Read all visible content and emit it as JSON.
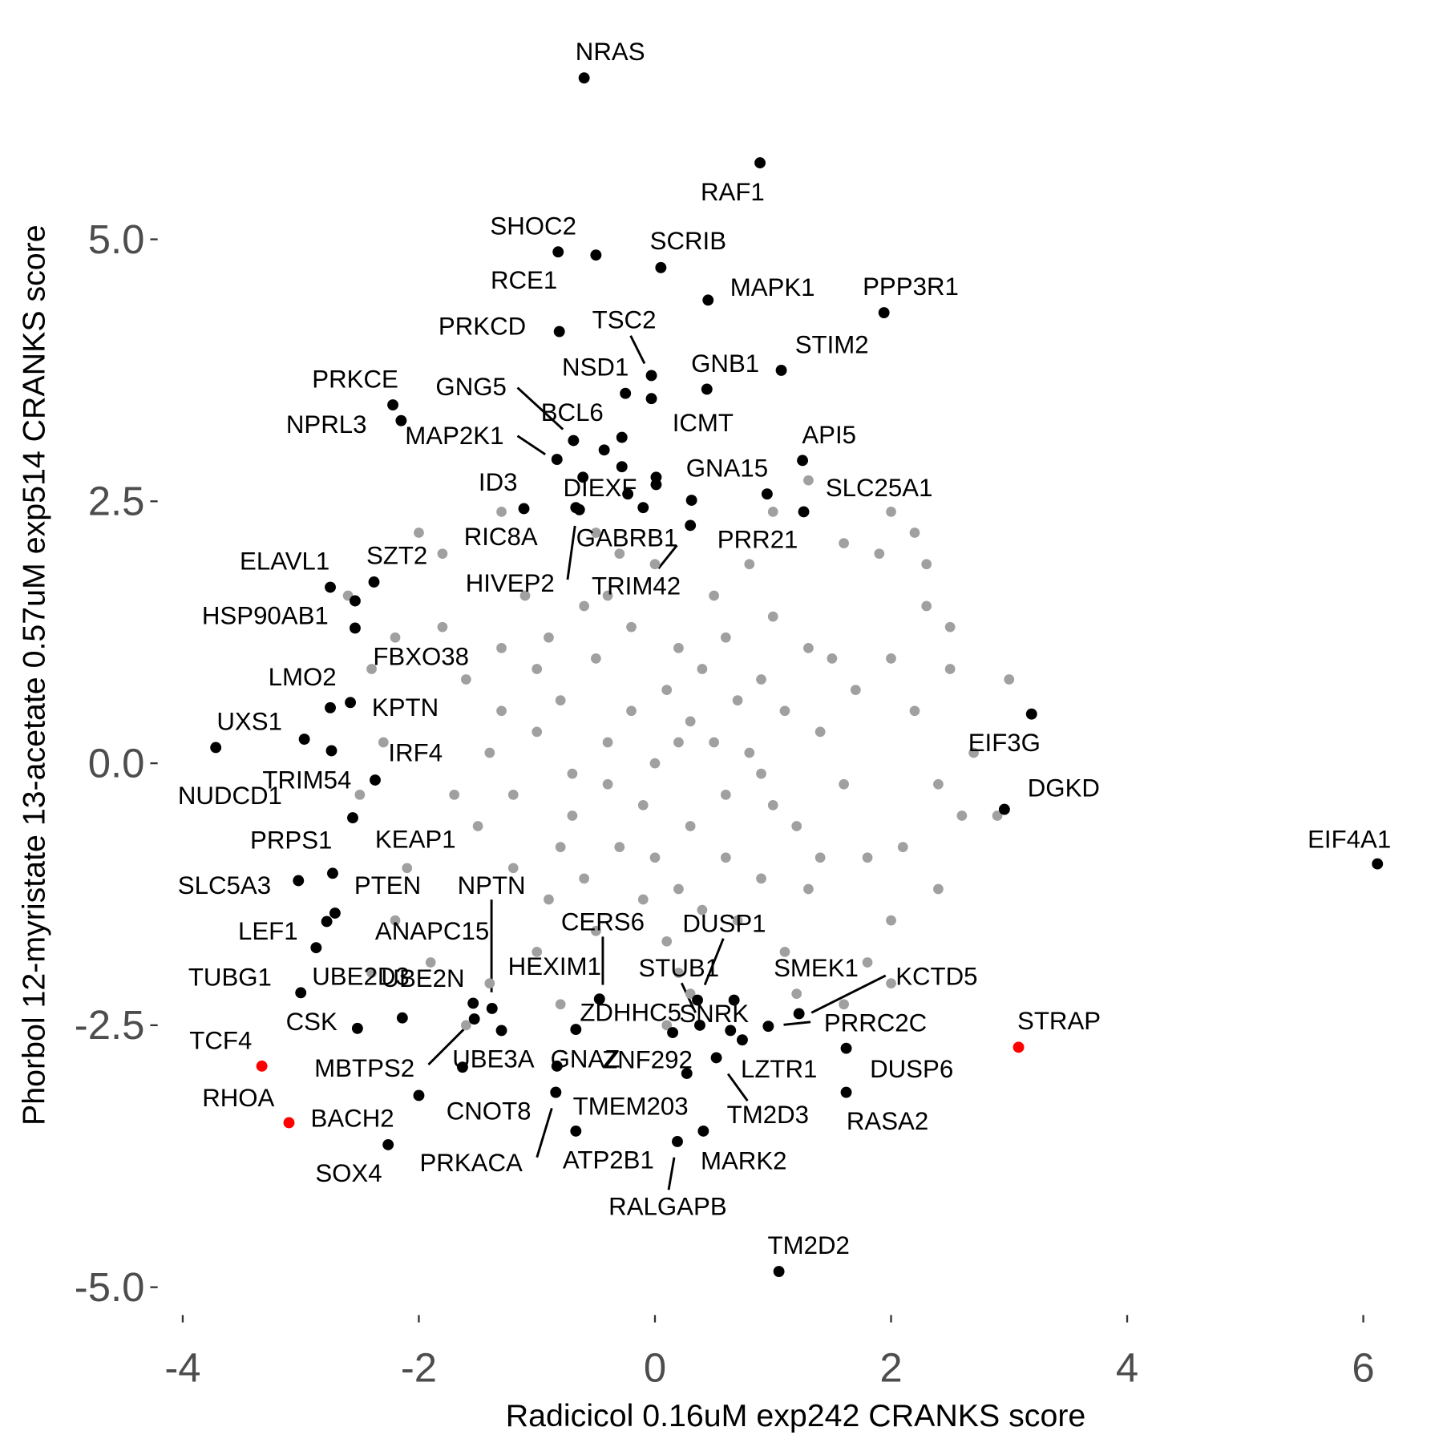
{
  "chart_data": {
    "type": "scatter",
    "xlabel": "Radicicol 0.16uM exp242 CRANKS score",
    "ylabel": "Phorbol 12-myristate 13-acetate 0.57uM exp514 CRANKS score",
    "xlim": [
      -4.17,
      6.24
    ],
    "ylim": [
      -5.2,
      6.93
    ],
    "xticks": [
      -4,
      -2,
      0,
      2,
      4,
      6
    ],
    "yticks": [
      {
        "value": -5,
        "label": "-5.0"
      },
      -2.5,
      {
        "value": 0,
        "label": "0.0"
      },
      2.5,
      {
        "value": 5,
        "label": "5.0"
      }
    ],
    "series": [
      {
        "color": "#a0a0a0",
        "x": [
          0,
          0.3,
          -0.4,
          0.6,
          -0.7,
          0.9,
          -1.0,
          1.2,
          -1.2,
          0.2,
          -0.2,
          0.5,
          -0.6,
          1.0,
          -1.1,
          1.4,
          -1.4,
          0.1,
          -0.5,
          0.7,
          -0.9,
          1.3,
          1.5,
          -1.5,
          0.4,
          -0.3,
          0.8,
          -0.8,
          0.1,
          -0.1,
          0.6,
          -0.5,
          1.1,
          -1.3,
          0.3,
          -0.6,
          0.9,
          -0.9,
          1.6,
          -1.6,
          0.0,
          0.2,
          -0.3,
          0.8,
          -1.0,
          1.1,
          1.7,
          -1.7,
          1.8,
          -1.8,
          2.0,
          2.2,
          2.4,
          2.1,
          2.5,
          2.7,
          2.6,
          2.3,
          2.0,
          1.9,
          2.2,
          2.3,
          1.6,
          1.0,
          -0.5,
          -1.3,
          -1.8,
          -2.2,
          -2.4,
          -2.3,
          -2.5,
          -2.1,
          -2.2,
          -1.9,
          -1.4,
          -0.8,
          0.3,
          1.2,
          1.8,
          2.4,
          2.0,
          -2.6,
          -2.4,
          -1.6,
          0.1,
          1.3,
          2.0,
          -2.0,
          1.6,
          3.0,
          2.9,
          2.5,
          0.5,
          -0.2,
          0.0,
          0.7,
          -0.7,
          1.3,
          -1.2,
          0.4,
          -0.4,
          1.0,
          -1.0,
          0.2,
          -0.1,
          0.6,
          -0.8,
          1.4,
          -1.3,
          0.9,
          -0.4,
          0.2
        ],
        "y": [
          0,
          0.4,
          0.2,
          -0.3,
          -0.5,
          0.8,
          0.9,
          -0.6,
          -1.0,
          -1.2,
          1.3,
          1.6,
          1.5,
          1.4,
          1.6,
          0.3,
          0.1,
          -1.7,
          -1.6,
          -1.5,
          -1.3,
          -1.2,
          1.0,
          -0.6,
          0.9,
          -0.8,
          0.1,
          0.6,
          0.7,
          -0.4,
          -0.9,
          1.0,
          0.5,
          0.5,
          -0.6,
          -1.1,
          -1.1,
          1.2,
          -0.2,
          0.8,
          1.9,
          -2.0,
          2.0,
          1.9,
          -1.8,
          -1.8,
          0.7,
          -0.3,
          -0.9,
          1.3,
          1.0,
          0.5,
          -0.2,
          -0.8,
          0.9,
          0.1,
          -0.5,
          1.5,
          -1.5,
          2.0,
          2.2,
          1.9,
          2.1,
          2.4,
          2.2,
          2.4,
          2.0,
          1.2,
          0.9,
          0.2,
          -0.3,
          -1.0,
          -1.5,
          -1.9,
          -2.1,
          -2.3,
          -2.2,
          -2.2,
          -1.9,
          -1.2,
          -2.1,
          1.6,
          -2.0,
          -2.5,
          -2.5,
          2.7,
          2.4,
          2.2,
          -2.3,
          0.8,
          -0.5,
          1.3,
          0.2,
          0.5,
          -0.9,
          0.6,
          -0.1,
          1.1,
          -0.3,
          -1.4,
          1.6,
          -0.4,
          0.3,
          1.1,
          -1.3,
          1.2,
          -0.8,
          -0.9,
          1.1,
          -0.1,
          -0.2,
          0.2
        ]
      },
      {
        "color": "#000000",
        "labels": [
          "NRAS",
          "RAF1",
          "SHOC2",
          "RCE1",
          "SCRIB",
          "MAPK1",
          "PPP3R1",
          "PRKCD",
          "TSC2",
          "NSD1",
          "GNB1",
          "STIM2",
          "ICMT",
          "PRKCE",
          "NPRL3",
          "GNG5",
          "BCL6",
          "MAP2K1",
          "API5",
          null,
          null,
          "DIEXF",
          null,
          null,
          "GNA15",
          "ID3",
          "RIC8A",
          "HIVEP2",
          "GABRB1",
          null,
          "TRIM42",
          "PRR21",
          "SLC25A1",
          "ELAVL1",
          "SZT2",
          "HSP90AB1",
          "FBXO38",
          "LMO2",
          "KPTN",
          "UXS1",
          "NUDCD1",
          "IRF4",
          "TRIM54",
          "PRPS1",
          "KEAP1",
          "SLC5A3",
          "PTEN",
          "LEF1",
          "ANAPC15",
          "TUBG1",
          "UBE2D3",
          "UBE2N",
          "NPTN",
          "MBTPS2",
          "UBE3A",
          "CNOT8",
          "BACH2",
          "SOX4",
          "CSK",
          "GNAZ",
          "TMEM203",
          "PRKACA",
          "ATP2B1",
          "RALGAPB",
          "MARK2",
          "CERS6",
          "HEXIM1",
          "ZDHHC5",
          "ZNF292",
          "DUSP1",
          "STUB1",
          "SNRK",
          "SMEK1",
          "LZTR1",
          "TM2D3",
          "PRRC2C",
          "KCTD5",
          "DUSP6",
          "RASA2",
          "TM2D2",
          "DGKD",
          "EIF3G",
          "EIF4A1"
        ],
        "x": [
          -0.6,
          0.89,
          -0.82,
          -0.5,
          0.05,
          0.45,
          1.94,
          -0.81,
          -0.03,
          -0.25,
          0.44,
          1.07,
          -0.03,
          -2.22,
          -2.15,
          -0.69,
          -0.28,
          -0.83,
          1.25,
          -0.43,
          -0.28,
          -0.61,
          0.01,
          0.01,
          0.31,
          -1.11,
          -0.67,
          -0.64,
          -0.23,
          -0.1,
          0.3,
          0.95,
          1.26,
          -2.75,
          -2.38,
          -2.54,
          -2.54,
          -2.75,
          -2.58,
          -3.72,
          -2.97,
          -2.74,
          -2.37,
          -2.56,
          -2.73,
          -3.02,
          -2.71,
          -2.78,
          -2.87,
          -3.0,
          -2.14,
          -1.54,
          -1.38,
          -1.53,
          -1.3,
          -1.63,
          -2.0,
          -2.26,
          -2.52,
          -0.83,
          -0.84,
          -0.84,
          -0.67,
          0.19,
          0.41,
          -0.47,
          -0.67,
          0.15,
          0.27,
          0.36,
          0.38,
          0.64,
          0.67,
          0.74,
          0.52,
          0.96,
          1.22,
          1.62,
          1.62,
          1.05,
          2.96,
          3.19,
          6.12
        ],
        "y": [
          6.54,
          5.73,
          4.88,
          4.85,
          4.73,
          4.42,
          4.3,
          4.12,
          3.7,
          3.53,
          3.57,
          3.75,
          3.48,
          3.42,
          3.27,
          3.08,
          3.11,
          2.9,
          2.89,
          2.99,
          2.83,
          2.73,
          2.73,
          2.66,
          2.51,
          2.43,
          2.44,
          2.42,
          2.57,
          2.44,
          2.27,
          2.57,
          2.4,
          1.68,
          1.73,
          1.55,
          1.29,
          0.53,
          0.58,
          0.15,
          0.23,
          0.12,
          -0.16,
          -0.52,
          -1.05,
          -1.12,
          -1.43,
          -1.51,
          -1.76,
          -2.19,
          -2.43,
          -2.29,
          -2.34,
          -2.44,
          -2.55,
          -2.9,
          -3.17,
          -3.64,
          -2.53,
          -2.89,
          -3.14,
          -3.14,
          -3.51,
          -3.61,
          -3.51,
          -2.25,
          -2.54,
          -2.57,
          -2.96,
          -2.26,
          -2.5,
          -2.55,
          -2.26,
          -2.64,
          -2.81,
          -2.51,
          -2.39,
          -2.72,
          -3.14,
          -4.85,
          -0.44,
          0.47,
          -0.96
        ]
      },
      {
        "color": "#ff0000",
        "labels": [
          "TCF4",
          "RHOA",
          "STRAP"
        ],
        "x": [
          -3.33,
          -3.1,
          3.08
        ],
        "y": [
          -2.89,
          -3.43,
          -2.71
        ]
      }
    ]
  }
}
